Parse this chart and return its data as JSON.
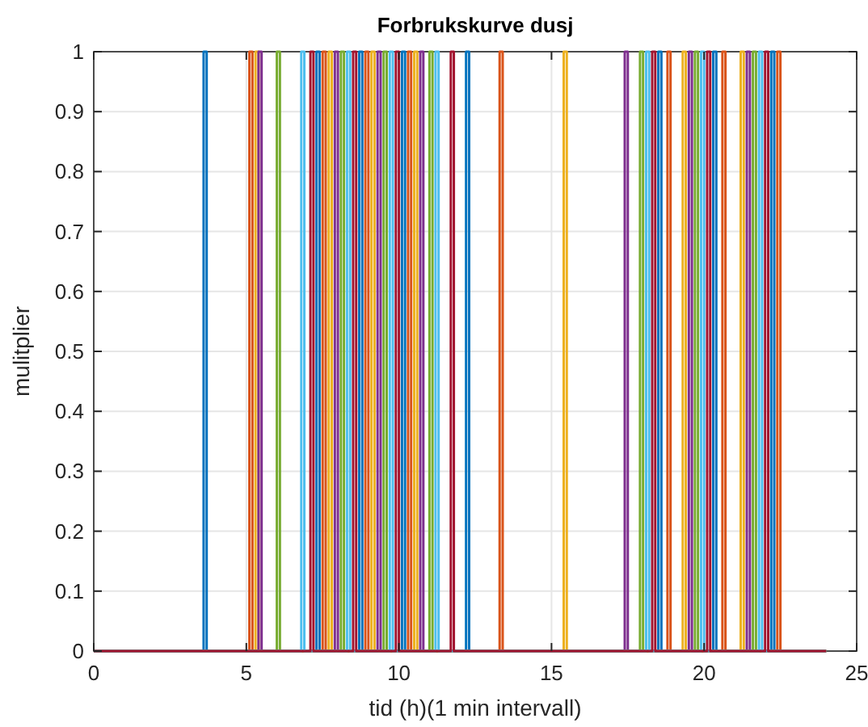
{
  "chart_data": {
    "type": "step",
    "title": "Forbrukskurve dusj",
    "xlabel": "tid (h)(1 min intervall)",
    "ylabel": "mulitplier",
    "xlim": [
      0,
      25
    ],
    "xticks": [
      0,
      5,
      10,
      15,
      20,
      25
    ],
    "ylim": [
      0,
      1
    ],
    "yticks": [
      0,
      0.1,
      0.2,
      0.3,
      0.4,
      0.5,
      0.6,
      0.7,
      0.8,
      0.9,
      1
    ],
    "grid": true,
    "series": [
      {
        "color": "#0072bd",
        "x": [
          0,
          3.6,
          3.7,
          7.3,
          7.4,
          8.7,
          8.8,
          10.1,
          10.2,
          12.2,
          12.3,
          18.5,
          18.6,
          20.3,
          20.4,
          22.2,
          22.3,
          24
        ],
        "values": [
          0,
          1,
          0,
          1,
          0,
          1,
          0,
          1,
          0,
          1,
          0,
          1,
          0,
          1,
          0,
          1,
          0,
          0
        ]
      },
      {
        "color": "#d95319",
        "x": [
          0,
          5.1,
          5.2,
          7.5,
          7.6,
          8.9,
          9.0,
          10.3,
          10.4,
          13.3,
          13.4,
          18.8,
          18.9,
          20.6,
          20.7,
          22.4,
          22.5,
          24
        ],
        "values": [
          0,
          1,
          0,
          1,
          0,
          1,
          0,
          1,
          0,
          1,
          0,
          1,
          0,
          1,
          0,
          1,
          0,
          0
        ]
      },
      {
        "color": "#edb120",
        "x": [
          0,
          5.3,
          5.4,
          7.7,
          7.8,
          9.1,
          9.2,
          10.5,
          10.6,
          15.4,
          15.5,
          19.3,
          19.4,
          21.2,
          21.3,
          24
        ],
        "values": [
          0,
          1,
          0,
          1,
          0,
          1,
          0,
          1,
          0,
          1,
          0,
          1,
          0,
          1,
          0,
          0
        ]
      },
      {
        "color": "#7e2f8e",
        "x": [
          0,
          5.4,
          5.5,
          7.9,
          8.0,
          9.3,
          9.4,
          10.7,
          10.8,
          17.4,
          17.5,
          19.5,
          19.6,
          21.4,
          21.5,
          24
        ],
        "values": [
          0,
          1,
          0,
          1,
          0,
          1,
          0,
          1,
          0,
          1,
          0,
          1,
          0,
          1,
          0,
          0
        ]
      },
      {
        "color": "#77ac30",
        "x": [
          0,
          6.0,
          6.1,
          8.1,
          8.2,
          9.5,
          9.6,
          11.0,
          11.1,
          17.9,
          18.0,
          19.7,
          19.8,
          21.6,
          21.7,
          24
        ],
        "values": [
          0,
          1,
          0,
          1,
          0,
          1,
          0,
          1,
          0,
          1,
          0,
          1,
          0,
          1,
          0,
          0
        ]
      },
      {
        "color": "#4dbeee",
        "x": [
          0,
          6.8,
          6.9,
          8.3,
          8.4,
          9.7,
          9.8,
          11.2,
          11.3,
          18.1,
          18.2,
          19.9,
          20.0,
          21.8,
          21.9,
          24
        ],
        "values": [
          0,
          1,
          0,
          1,
          0,
          1,
          0,
          1,
          0,
          1,
          0,
          1,
          0,
          1,
          0,
          0
        ]
      },
      {
        "color": "#a2142f",
        "x": [
          0,
          7.1,
          7.2,
          8.5,
          8.6,
          9.9,
          10.0,
          11.7,
          11.8,
          18.3,
          18.4,
          20.1,
          20.2,
          22.0,
          22.1,
          24
        ],
        "values": [
          0,
          1,
          0,
          1,
          0,
          1,
          0,
          1,
          0,
          1,
          0,
          1,
          0,
          1,
          0,
          0
        ]
      }
    ]
  }
}
